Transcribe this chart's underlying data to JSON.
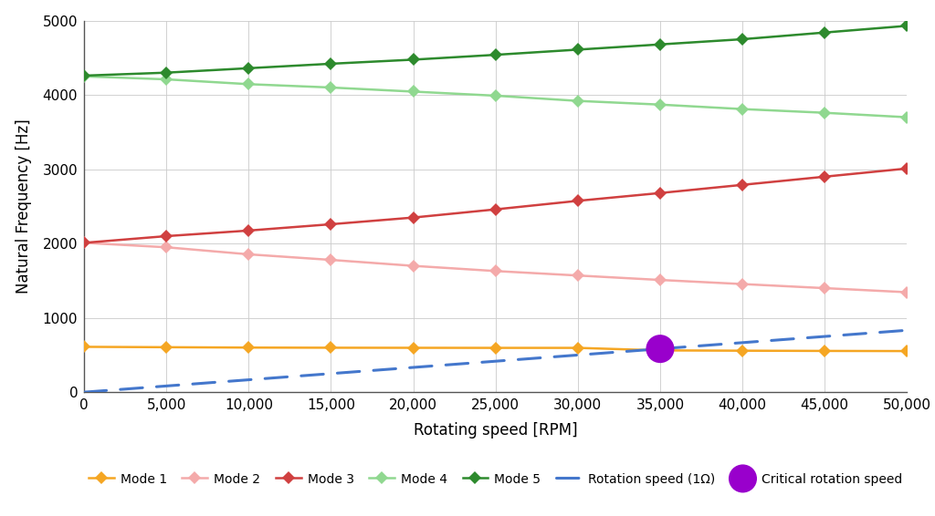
{
  "rpm": [
    0,
    5000,
    10000,
    15000,
    20000,
    25000,
    30000,
    35000,
    40000,
    45000,
    50000
  ],
  "mode1": [
    610,
    605,
    600,
    598,
    597,
    596,
    596,
    562,
    558,
    555,
    553
  ],
  "mode2": [
    2010,
    1950,
    1855,
    1780,
    1700,
    1630,
    1570,
    1510,
    1455,
    1400,
    1345
  ],
  "mode3": [
    2010,
    2100,
    2175,
    2260,
    2350,
    2460,
    2575,
    2680,
    2790,
    2900,
    3010
  ],
  "mode4": [
    4250,
    4210,
    4145,
    4100,
    4045,
    3990,
    3920,
    3870,
    3810,
    3760,
    3700
  ],
  "mode5": [
    4260,
    4300,
    4360,
    4420,
    4475,
    4540,
    4610,
    4680,
    4750,
    4840,
    4930
  ],
  "rotation_speed_rpm": [
    0,
    50000
  ],
  "rotation_speed_freq": [
    0,
    833
  ],
  "critical_rpm": 35000,
  "critical_freq": 583,
  "color_mode1": "#F5A623",
  "color_mode2": "#F4AAAA",
  "color_mode3": "#D04040",
  "color_mode4": "#90D890",
  "color_mode5": "#2D8A2D",
  "color_rotation": "#4477CC",
  "color_critical": "#9900CC",
  "xlabel": "Rotating speed [RPM]",
  "ylabel": "Natural Frequency [Hz]",
  "xlim": [
    0,
    50000
  ],
  "ylim": [
    0,
    5000
  ],
  "yticks": [
    0,
    1000,
    2000,
    3000,
    4000,
    5000
  ],
  "xtick_values": [
    0,
    5000,
    10000,
    15000,
    20000,
    25000,
    30000,
    35000,
    40000,
    45000,
    50000
  ],
  "xtick_labels": [
    "0",
    "5,000",
    "10,000",
    "15,000",
    "20,000",
    "25,000",
    "30,000",
    "35,000",
    "40,000",
    "45,000",
    "50,000"
  ],
  "background_color": "#FFFFFF",
  "grid_color": "#CCCCCC",
  "tick_fontsize": 11,
  "label_fontsize": 12,
  "legend_fontsize": 10
}
